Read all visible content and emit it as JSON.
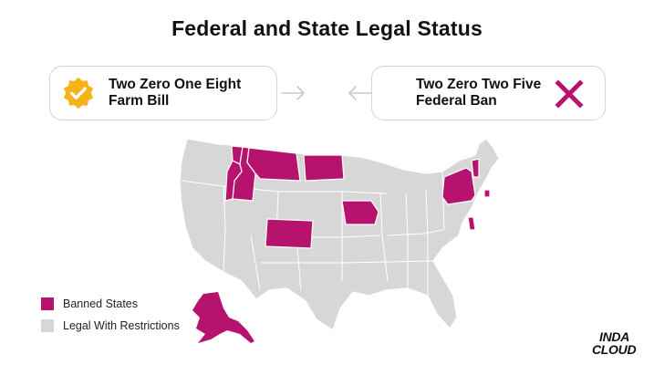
{
  "title": "Federal and State Legal Status",
  "cards": {
    "left": {
      "line1": "Two Zero One Eight",
      "line2": "Farm Bill",
      "icon": "check-badge-icon"
    },
    "right": {
      "line1": "Two Zero Two Five",
      "line2": "Federal Ban",
      "icon": "x-mark-icon"
    }
  },
  "colors": {
    "banned": "#b6136f",
    "legal": "#d7d7d7",
    "badge": "#f5b31a",
    "border": "#d4d4d4"
  },
  "map": {
    "banned_states": [
      "WA? no",
      "OR? no"
    ]
  },
  "legend": {
    "banned": "Banned States",
    "legal": "Legal With Restrictions"
  },
  "logo": {
    "line1": "INDA",
    "line2": "CLOUD"
  }
}
